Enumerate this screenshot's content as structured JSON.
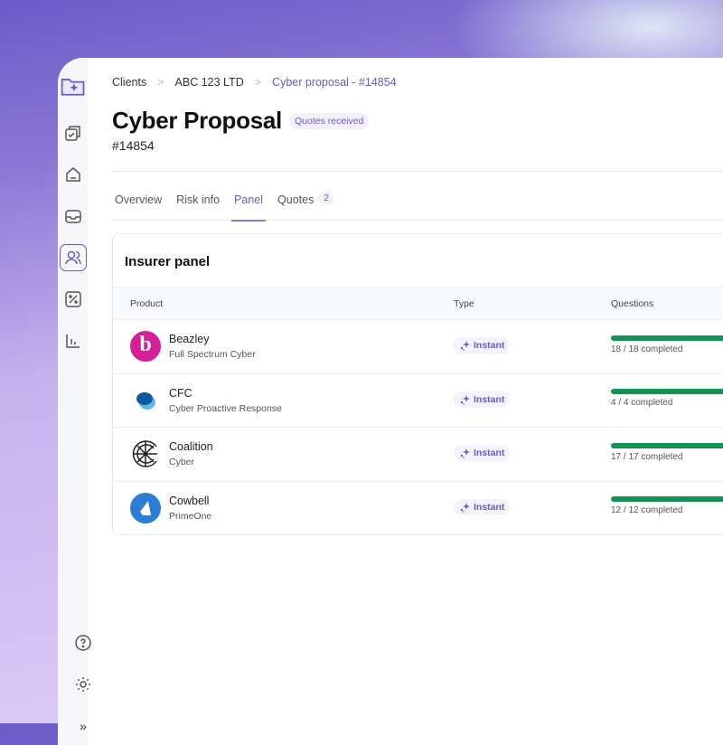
{
  "breadcrumb": [
    "Clients",
    "ABC 123 LTD",
    "Cyber proposal - #14854"
  ],
  "title": "Cyber Proposal",
  "status": "Quotes received",
  "id": "#14854",
  "tabs": [
    {
      "label": "Overview"
    },
    {
      "label": "Risk info"
    },
    {
      "label": "Panel",
      "active": true
    },
    {
      "label": "Quotes",
      "count": "2"
    }
  ],
  "panel": {
    "title": "Insurer panel",
    "columns": [
      "Product",
      "Type",
      "Questions"
    ],
    "rows": [
      {
        "insurer": "Beazley",
        "product": "Full Spectrum Cyber",
        "type": "Instant",
        "questions": "18 / 18 completed",
        "progress": 1.0
      },
      {
        "insurer": "CFC",
        "product": "Cyber Proactive Response",
        "type": "Instant",
        "questions": "4 / 4 completed",
        "progress": 1.0
      },
      {
        "insurer": "Coalition",
        "product": "Cyber",
        "type": "Instant",
        "questions": "17 / 17 completed",
        "progress": 1.0
      },
      {
        "insurer": "Cowbell",
        "product": "PrimeOne",
        "type": "Instant",
        "questions": "12 / 12 completed",
        "progress": 1.0
      }
    ]
  },
  "colors": {
    "accent": "#6b5bc4",
    "progress": "#139455"
  }
}
